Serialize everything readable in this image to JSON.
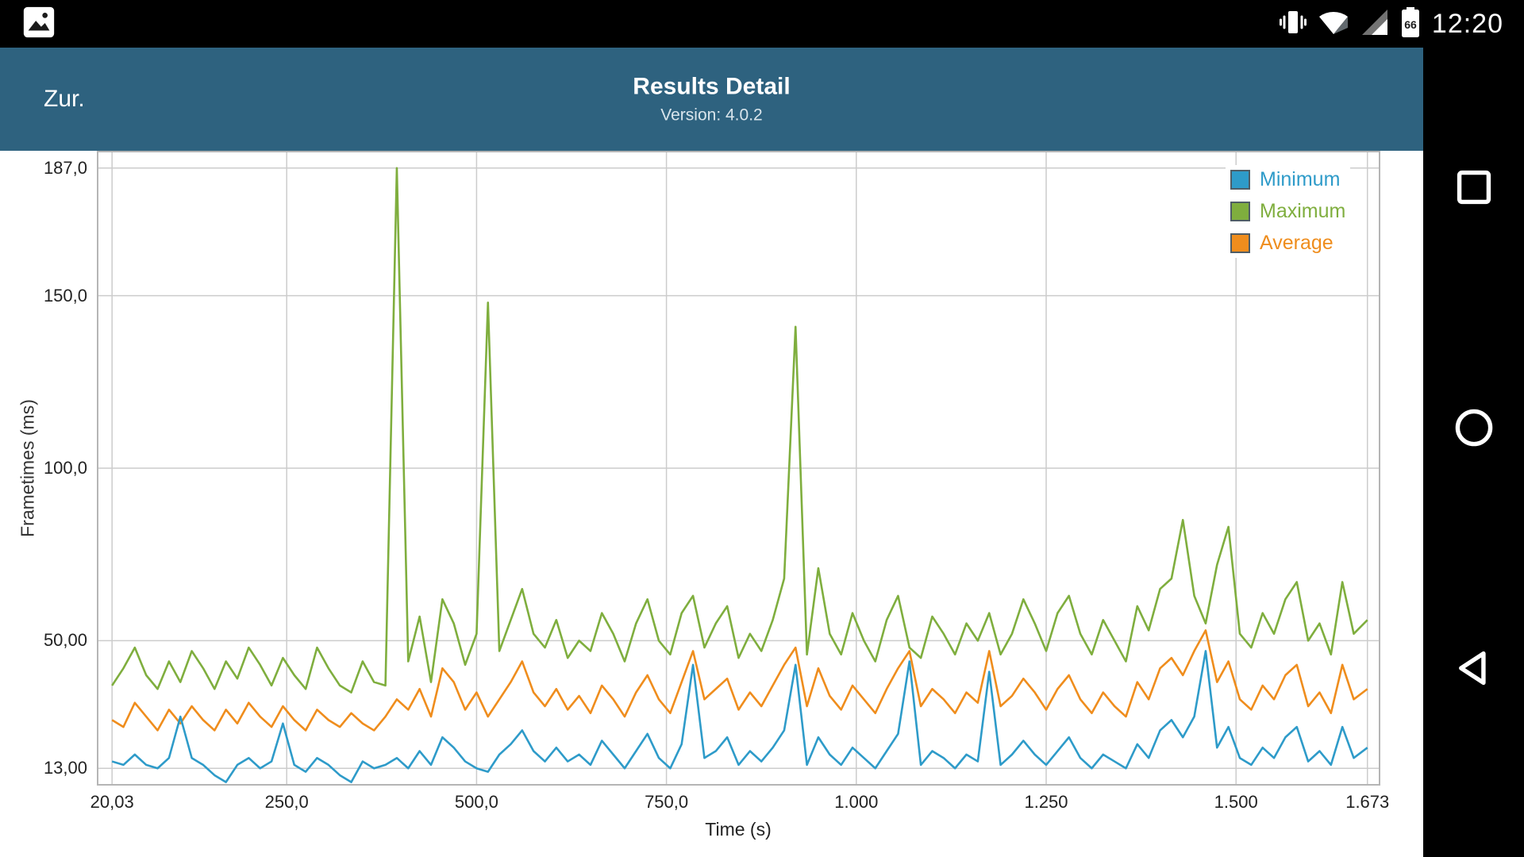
{
  "status_bar": {
    "time": "12:20",
    "battery_level": "66"
  },
  "header": {
    "back_label": "Zur.",
    "title": "Results Detail",
    "subtitle": "Version: 4.0.2",
    "background": "#2e627f"
  },
  "nav_bar": {
    "buttons": [
      "recents",
      "home",
      "back"
    ]
  },
  "chart_data": {
    "type": "line",
    "title": "",
    "xlabel": "Time (s)",
    "ylabel": "Frametimes (ms)",
    "xlim": [
      0,
      1690
    ],
    "ylim": [
      8,
      192
    ],
    "grid": true,
    "grid_color": "#cccccc",
    "border_color": "#b5b5b5",
    "legend_position": "top-right",
    "x_ticks": [
      20.03,
      250,
      500,
      750,
      1000,
      1250,
      1500,
      1673
    ],
    "x_tick_labels": [
      "20,03",
      "250,0",
      "500,0",
      "750,0",
      "1.000",
      "1.250",
      "1.500",
      "1.673"
    ],
    "y_ticks": [
      187,
      150,
      100,
      50,
      13
    ],
    "y_tick_labels": [
      "187,0",
      "150,0",
      "100,0",
      "50,00",
      "13,00"
    ],
    "draw_order": [
      1,
      2,
      0
    ],
    "x": [
      20.03,
      35,
      50,
      65,
      80,
      95,
      110,
      125,
      140,
      155,
      170,
      185,
      200,
      215,
      230,
      245,
      260,
      275,
      290,
      305,
      320,
      335,
      350,
      365,
      380,
      395,
      410,
      425,
      440,
      455,
      470,
      485,
      500,
      515,
      530,
      545,
      560,
      575,
      590,
      605,
      620,
      635,
      650,
      665,
      680,
      695,
      710,
      725,
      740,
      755,
      770,
      785,
      800,
      815,
      830,
      845,
      860,
      875,
      890,
      905,
      920,
      935,
      950,
      965,
      980,
      995,
      1010,
      1025,
      1040,
      1055,
      1070,
      1085,
      1100,
      1115,
      1130,
      1145,
      1160,
      1175,
      1190,
      1205,
      1220,
      1235,
      1250,
      1265,
      1280,
      1295,
      1310,
      1325,
      1340,
      1355,
      1370,
      1385,
      1400,
      1415,
      1430,
      1445,
      1460,
      1475,
      1490,
      1505,
      1520,
      1535,
      1550,
      1565,
      1580,
      1595,
      1610,
      1625,
      1640,
      1655,
      1673
    ],
    "series": [
      {
        "name": "Minimum",
        "color": "#2e9bc9",
        "values": [
          15,
          14,
          17,
          14,
          13,
          16,
          28,
          16,
          14,
          11,
          9,
          14,
          16,
          13,
          15,
          26,
          14,
          12,
          16,
          14,
          11,
          9,
          15,
          13,
          14,
          16,
          13,
          18,
          14,
          22,
          19,
          15,
          13,
          12,
          17,
          20,
          24,
          18,
          15,
          19,
          15,
          17,
          14,
          21,
          17,
          13,
          18,
          23,
          16,
          13,
          20,
          43,
          16,
          18,
          22,
          14,
          18,
          15,
          19,
          24,
          43,
          14,
          22,
          17,
          14,
          19,
          16,
          13,
          18,
          23,
          44,
          14,
          18,
          16,
          13,
          17,
          15,
          41,
          14,
          17,
          21,
          17,
          14,
          18,
          22,
          16,
          13,
          17,
          15,
          13,
          20,
          16,
          24,
          27,
          22,
          28,
          47,
          19,
          25,
          16,
          14,
          19,
          16,
          22,
          25,
          15,
          18,
          14,
          25,
          16,
          19
        ]
      },
      {
        "name": "Maximum",
        "color": "#7fae3e",
        "values": [
          37,
          42,
          48,
          40,
          36,
          44,
          38,
          47,
          42,
          36,
          44,
          39,
          48,
          43,
          37,
          45,
          40,
          36,
          48,
          42,
          37,
          35,
          44,
          38,
          37,
          187,
          44,
          57,
          38,
          62,
          55,
          43,
          52,
          148,
          47,
          56,
          65,
          52,
          48,
          56,
          45,
          50,
          47,
          58,
          52,
          44,
          55,
          62,
          50,
          46,
          58,
          63,
          48,
          55,
          60,
          45,
          52,
          47,
          56,
          68,
          141,
          46,
          71,
          52,
          46,
          58,
          50,
          44,
          56,
          63,
          48,
          45,
          57,
          52,
          46,
          55,
          50,
          58,
          46,
          52,
          62,
          55,
          47,
          58,
          63,
          52,
          46,
          56,
          50,
          44,
          60,
          53,
          65,
          68,
          85,
          63,
          55,
          72,
          83,
          52,
          48,
          58,
          52,
          62,
          67,
          50,
          55,
          46,
          67,
          52,
          56
        ]
      },
      {
        "name": "Average",
        "color": "#ef8d1d",
        "values": [
          27,
          25,
          32,
          28,
          24,
          30,
          26,
          31,
          27,
          24,
          30,
          26,
          32,
          28,
          25,
          31,
          27,
          24,
          30,
          27,
          25,
          29,
          26,
          24,
          28,
          33,
          30,
          36,
          28,
          42,
          38,
          30,
          35,
          28,
          33,
          38,
          44,
          35,
          31,
          36,
          30,
          34,
          29,
          37,
          33,
          28,
          35,
          40,
          33,
          29,
          38,
          47,
          33,
          36,
          39,
          30,
          35,
          31,
          37,
          43,
          48,
          31,
          42,
          34,
          30,
          37,
          33,
          29,
          36,
          42,
          47,
          31,
          36,
          33,
          29,
          35,
          32,
          47,
          31,
          34,
          39,
          35,
          30,
          36,
          40,
          33,
          29,
          35,
          31,
          28,
          38,
          33,
          42,
          45,
          40,
          47,
          53,
          38,
          44,
          33,
          30,
          37,
          33,
          40,
          43,
          31,
          35,
          29,
          43,
          33,
          36
        ]
      }
    ]
  }
}
